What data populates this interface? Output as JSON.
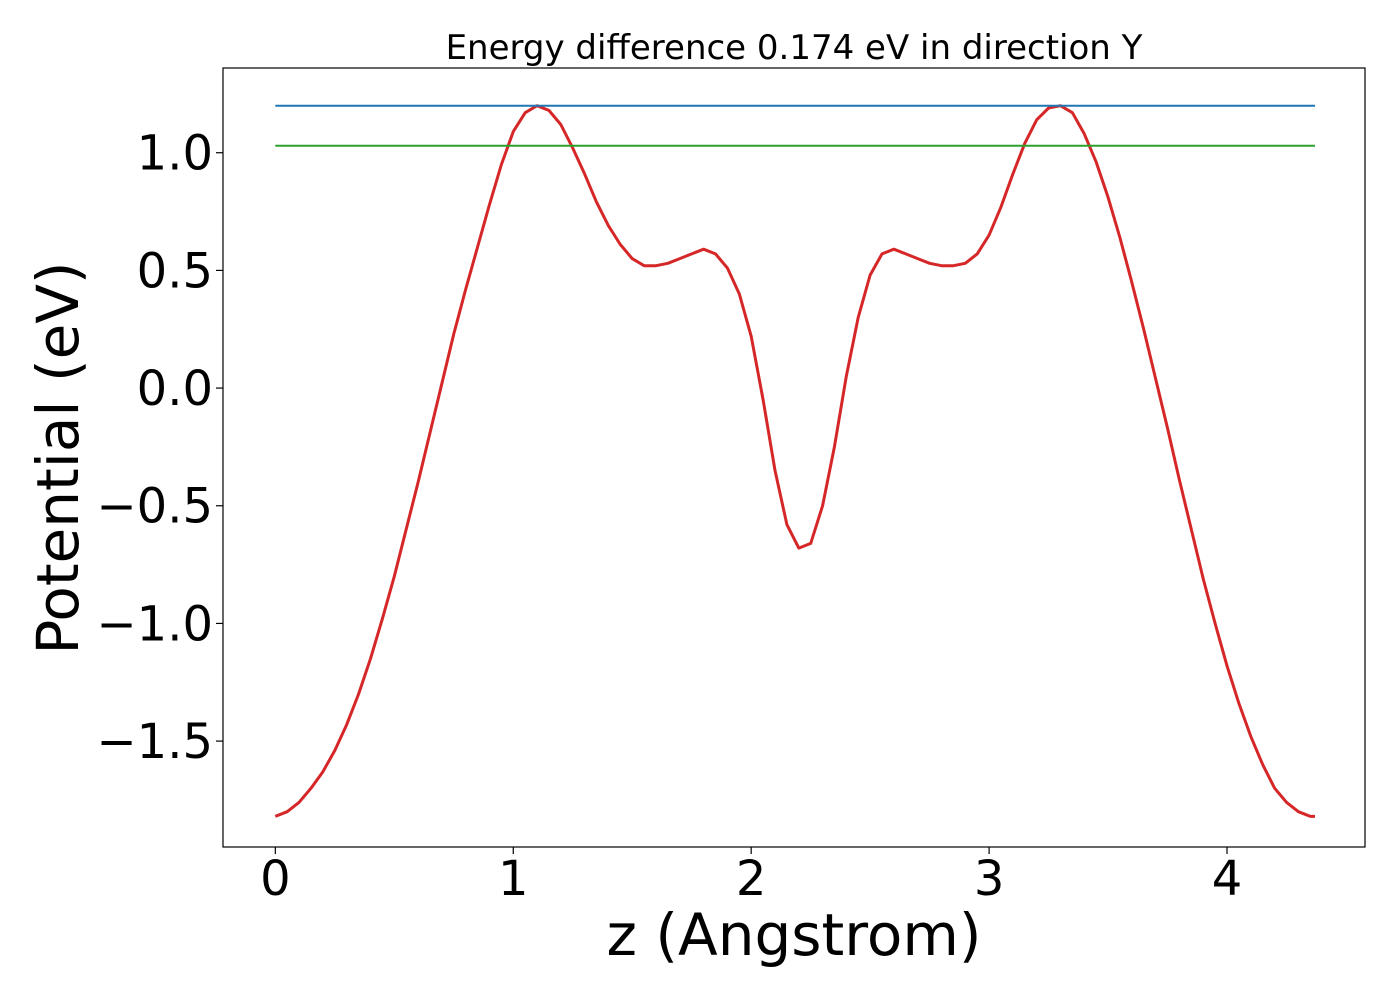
{
  "chart_data": {
    "type": "line",
    "title": "Energy difference 0.174 eV in direction Y",
    "xlabel": "z (Angstrom)",
    "ylabel": "Potential (eV)",
    "xlim": [
      -0.22,
      4.58
    ],
    "ylim": [
      -1.95,
      1.36
    ],
    "x_ticks": [
      0,
      1,
      2,
      3,
      4
    ],
    "x_tick_labels": [
      "0",
      "1",
      "2",
      "3",
      "4"
    ],
    "y_ticks": [
      -1.5,
      -1.0,
      -0.5,
      0.0,
      0.5,
      1.0
    ],
    "y_tick_labels": [
      "−1.5",
      "−1.0",
      "−0.5",
      "0.0",
      "0.5",
      "1.0"
    ],
    "grid": false,
    "series": [
      {
        "color": "#d62728",
        "x": [
          0.0,
          0.05,
          0.1,
          0.15,
          0.2,
          0.25,
          0.3,
          0.35,
          0.4,
          0.45,
          0.5,
          0.55,
          0.6,
          0.65,
          0.7,
          0.75,
          0.8,
          0.85,
          0.9,
          0.95,
          1.0,
          1.05,
          1.1,
          1.15,
          1.2,
          1.25,
          1.3,
          1.35,
          1.4,
          1.45,
          1.5,
          1.55,
          1.6,
          1.65,
          1.7,
          1.75,
          1.8,
          1.85,
          1.9,
          1.95,
          2.0,
          2.05,
          2.1,
          2.15,
          2.2,
          2.25,
          2.3,
          2.35,
          2.4,
          2.45,
          2.5,
          2.55,
          2.6,
          2.65,
          2.7,
          2.75,
          2.8,
          2.85,
          2.9,
          2.95,
          3.0,
          3.05,
          3.1,
          3.15,
          3.2,
          3.25,
          3.3,
          3.35,
          3.4,
          3.45,
          3.5,
          3.55,
          3.6,
          3.65,
          3.7,
          3.75,
          3.8,
          3.85,
          3.9,
          3.95,
          4.0,
          4.05,
          4.1,
          4.15,
          4.2,
          4.25,
          4.3,
          4.35,
          4.37
        ],
        "y": [
          -1.82,
          -1.8,
          -1.76,
          -1.7,
          -1.63,
          -1.54,
          -1.43,
          -1.3,
          -1.15,
          -0.98,
          -0.8,
          -0.6,
          -0.4,
          -0.19,
          0.02,
          0.23,
          0.42,
          0.6,
          0.78,
          0.95,
          1.09,
          1.17,
          1.2,
          1.18,
          1.12,
          1.02,
          0.91,
          0.79,
          0.69,
          0.61,
          0.55,
          0.52,
          0.52,
          0.53,
          0.55,
          0.57,
          0.59,
          0.57,
          0.51,
          0.4,
          0.22,
          -0.05,
          -0.35,
          -0.58,
          -0.68,
          -0.66,
          -0.5,
          -0.25,
          0.05,
          0.3,
          0.48,
          0.57,
          0.59,
          0.57,
          0.55,
          0.53,
          0.52,
          0.52,
          0.53,
          0.57,
          0.65,
          0.77,
          0.91,
          1.04,
          1.14,
          1.19,
          1.2,
          1.17,
          1.08,
          0.96,
          0.81,
          0.64,
          0.45,
          0.25,
          0.04,
          -0.17,
          -0.39,
          -0.6,
          -0.81,
          -1.0,
          -1.18,
          -1.34,
          -1.48,
          -1.6,
          -1.7,
          -1.76,
          -1.8,
          -1.82,
          -1.82
        ]
      },
      {
        "color": "#1f77b4",
        "x": [
          0.0,
          4.37
        ],
        "y": [
          1.2,
          1.2
        ]
      },
      {
        "color": "#2ca02c",
        "x": [
          0.0,
          4.37
        ],
        "y": [
          1.03,
          1.03
        ]
      }
    ]
  }
}
